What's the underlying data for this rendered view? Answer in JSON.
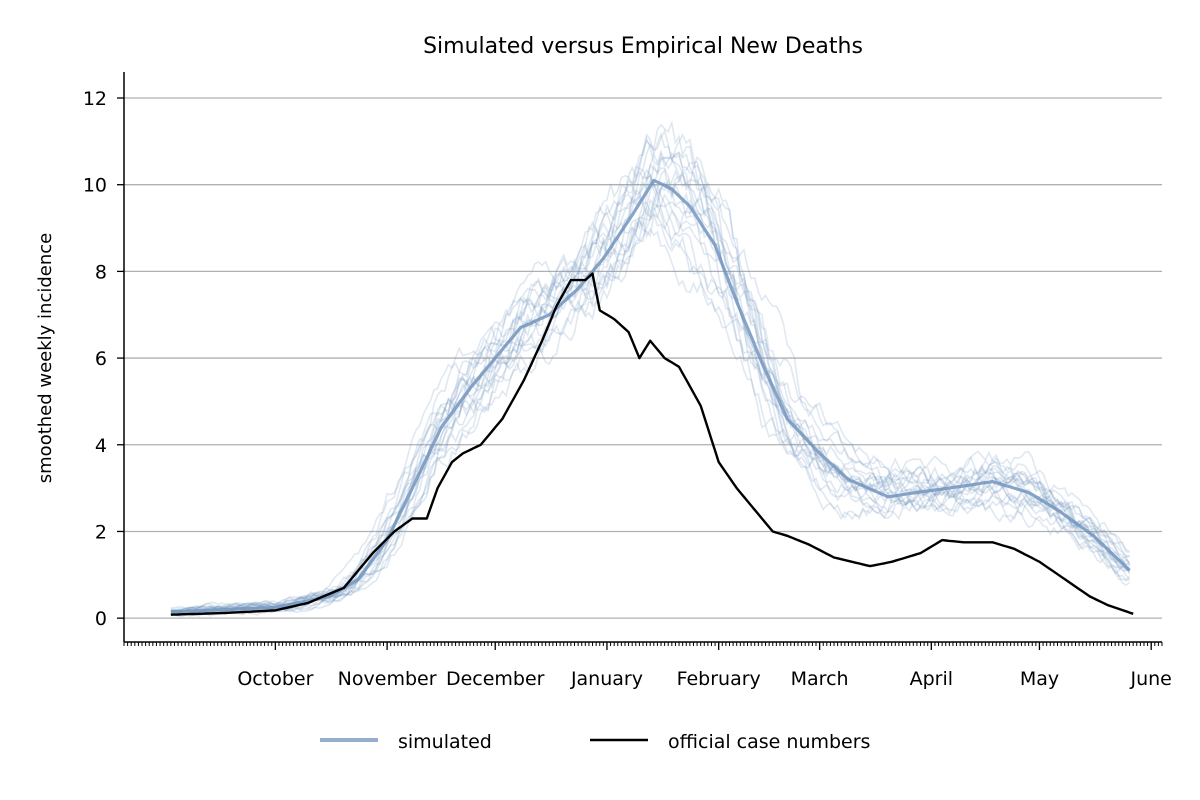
{
  "chart_data": {
    "type": "line",
    "title": "Simulated versus Empirical New Deaths",
    "xlabel": "",
    "ylabel": "smoothed weekly incidence",
    "x_axis": {
      "kind": "date",
      "range": [
        "2020-08-20",
        "2021-06-04"
      ],
      "tick_labels": [
        "October",
        "November",
        "December",
        "January",
        "February",
        "March",
        "April",
        "May",
        "June"
      ],
      "tick_dates": [
        "2020-10-01",
        "2020-11-01",
        "2020-12-01",
        "2021-01-01",
        "2021-02-01",
        "2021-03-01",
        "2021-04-01",
        "2021-05-01",
        "2021-06-01"
      ]
    },
    "ylim": [
      -0.55,
      12.6
    ],
    "yticks": [
      0,
      2,
      4,
      6,
      8,
      10,
      12
    ],
    "grid": "horizontal",
    "legend": {
      "placement": "bottom-center",
      "entries": [
        "simulated",
        "official case numbers"
      ]
    },
    "colors": {
      "simulated": "#7395bd",
      "official": "#000000",
      "grid": "#b0b0b0"
    },
    "series": [
      {
        "name": "simulated",
        "style": "mean of ensemble with 20 faint individual runs",
        "x": [
          "2020-09-02",
          "2020-09-17",
          "2020-10-01",
          "2020-10-16",
          "2020-10-24",
          "2020-11-01",
          "2020-11-08",
          "2020-11-16",
          "2020-11-24",
          "2020-12-01",
          "2020-12-08",
          "2020-12-16",
          "2020-12-24",
          "2020-12-31",
          "2021-01-08",
          "2021-01-14",
          "2021-01-19",
          "2021-01-24",
          "2021-01-31",
          "2021-02-06",
          "2021-02-13",
          "2021-02-20",
          "2021-03-01",
          "2021-03-09",
          "2021-03-20",
          "2021-03-28",
          "2021-04-06",
          "2021-04-18",
          "2021-04-28",
          "2021-05-06",
          "2021-05-16",
          "2021-05-26"
        ],
        "y": [
          0.15,
          0.2,
          0.25,
          0.5,
          0.9,
          1.8,
          3.0,
          4.4,
          5.3,
          6.0,
          6.7,
          7.0,
          7.6,
          8.3,
          9.3,
          10.1,
          9.9,
          9.5,
          8.6,
          7.3,
          5.9,
          4.6,
          3.8,
          3.2,
          2.8,
          2.9,
          3.0,
          3.15,
          2.9,
          2.5,
          1.9,
          1.1
        ]
      },
      {
        "name": "official case numbers",
        "x": [
          "2020-09-02",
          "2020-09-17",
          "2020-10-01",
          "2020-10-10",
          "2020-10-20",
          "2020-10-28",
          "2020-11-03",
          "2020-11-08",
          "2020-11-12",
          "2020-11-15",
          "2020-11-19",
          "2020-11-22",
          "2020-11-27",
          "2020-12-03",
          "2020-12-09",
          "2020-12-14",
          "2020-12-18",
          "2020-12-22",
          "2020-12-26",
          "2020-12-28",
          "2020-12-30",
          "2021-01-03",
          "2021-01-07",
          "2021-01-10",
          "2021-01-13",
          "2021-01-17",
          "2021-01-21",
          "2021-01-27",
          "2021-02-01",
          "2021-02-06",
          "2021-02-11",
          "2021-02-16",
          "2021-02-20",
          "2021-02-26",
          "2021-03-05",
          "2021-03-15",
          "2021-03-21",
          "2021-03-29",
          "2021-04-04",
          "2021-04-10",
          "2021-04-18",
          "2021-04-24",
          "2021-05-01",
          "2021-05-08",
          "2021-05-15",
          "2021-05-20",
          "2021-05-27"
        ],
        "y": [
          0.08,
          0.12,
          0.18,
          0.35,
          0.7,
          1.5,
          2.0,
          2.3,
          2.3,
          3.0,
          3.6,
          3.8,
          4.0,
          4.6,
          5.5,
          6.4,
          7.2,
          7.8,
          7.8,
          7.95,
          7.1,
          6.9,
          6.6,
          6.0,
          6.4,
          6.0,
          5.8,
          4.9,
          3.6,
          3.0,
          2.5,
          2.0,
          1.9,
          1.7,
          1.4,
          1.2,
          1.3,
          1.5,
          1.8,
          1.75,
          1.75,
          1.6,
          1.3,
          0.9,
          0.5,
          0.3,
          0.1
        ]
      }
    ]
  }
}
